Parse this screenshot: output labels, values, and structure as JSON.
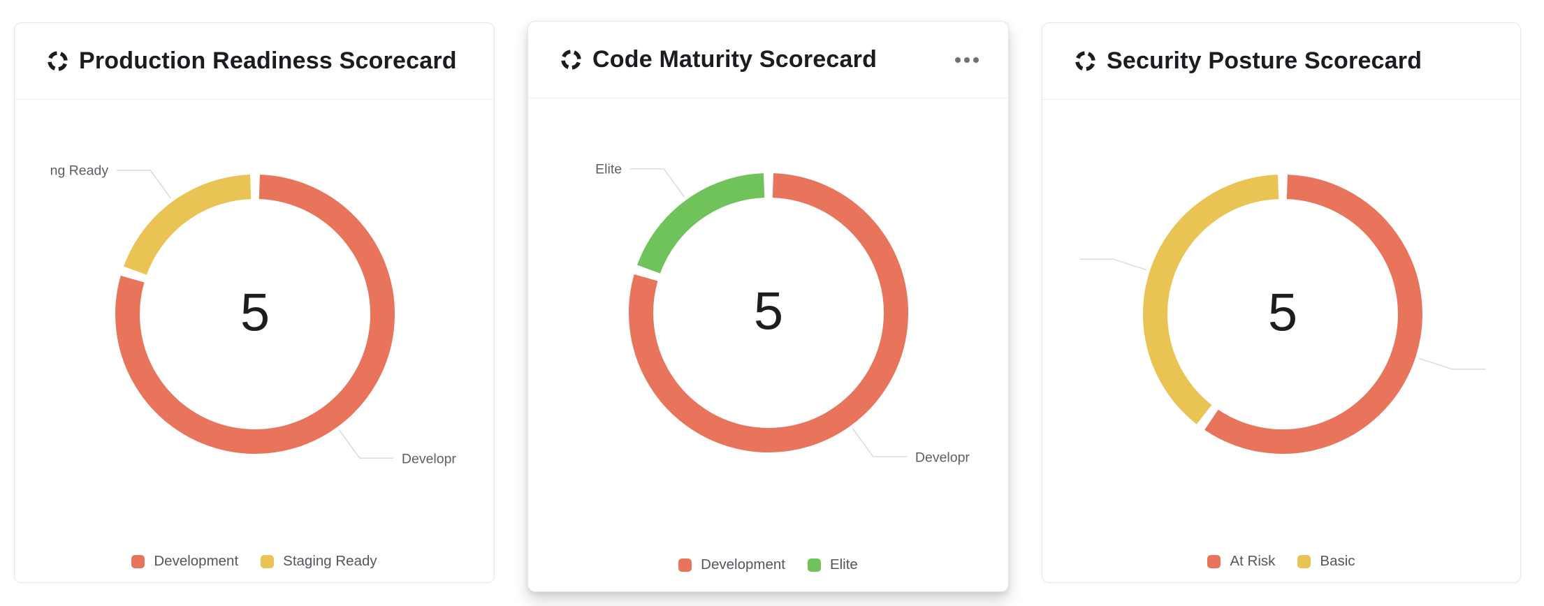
{
  "page": {
    "background": "#ffffff"
  },
  "ui": {
    "card_title_icon": "donut-chart-icon",
    "menu_icon": "ellipsis-icon",
    "leader_line_color": "#DBDBDF",
    "callout_text_color": "#5C5F66"
  },
  "chart_data": [
    {
      "type": "pie",
      "variant": "donut",
      "title": "Production Readiness Scorecard",
      "center_label": "5",
      "total": 5,
      "legend_position": "bottom",
      "has_menu": false,
      "segments": [
        {
          "label": "Development",
          "value": 4,
          "color": "#E8745B",
          "callout_text": "Developr"
        },
        {
          "label": "Staging Ready",
          "value": 1,
          "color": "#EAC355",
          "callout_text": "ng Ready"
        }
      ],
      "legend": [
        "Development",
        "Staging Ready"
      ]
    },
    {
      "type": "pie",
      "variant": "donut",
      "title": "Code Maturity Scorecard",
      "center_label": "5",
      "total": 5,
      "legend_position": "bottom",
      "has_menu": true,
      "segments": [
        {
          "label": "Development",
          "value": 4,
          "color": "#E8745B",
          "callout_text": "Developr"
        },
        {
          "label": "Elite",
          "value": 1,
          "color": "#6FC35A",
          "callout_text": "Elite"
        }
      ],
      "legend": [
        "Development",
        "Elite"
      ]
    },
    {
      "type": "pie",
      "variant": "donut",
      "title": "Security Posture Scorecard",
      "center_label": "5",
      "total": 5,
      "legend_position": "bottom",
      "has_menu": false,
      "segments": [
        {
          "label": "At Risk",
          "value": 3,
          "color": "#E8745B",
          "callout_text": ""
        },
        {
          "label": "Basic",
          "value": 2,
          "color": "#EAC355",
          "callout_text": ""
        }
      ],
      "legend": [
        "At Risk",
        "Basic"
      ]
    }
  ]
}
